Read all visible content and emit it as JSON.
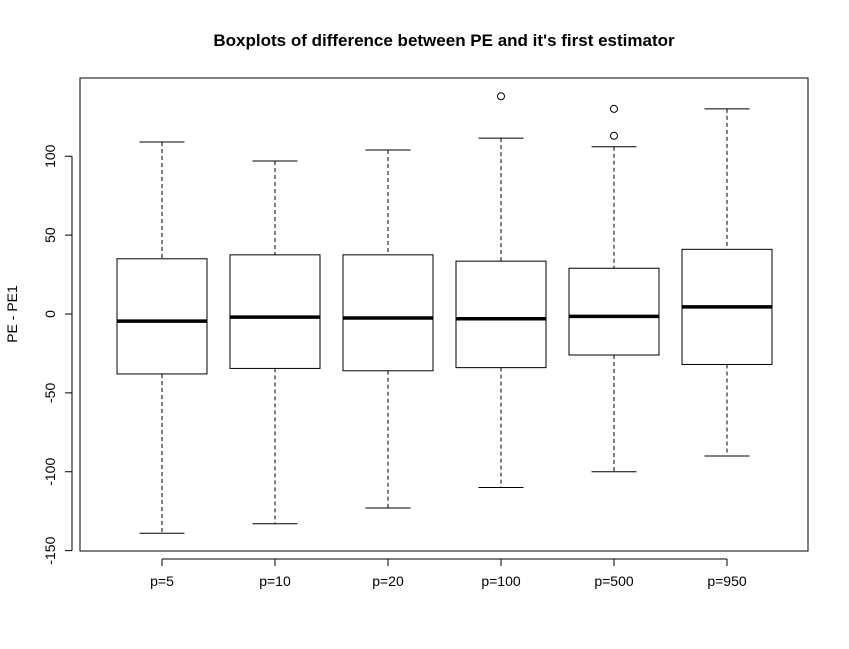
{
  "chart_data": {
    "type": "boxplot",
    "title": "Boxplots of difference between PE and it's first estimator",
    "xlabel": "",
    "ylabel": "PE - PE1",
    "ylim": [
      -150,
      140
    ],
    "yticks": [
      -150,
      -100,
      -50,
      0,
      50,
      100
    ],
    "grid": false,
    "categories": [
      "p=5",
      "p=10",
      "p=20",
      "p=100",
      "p=500",
      "p=950"
    ],
    "boxes": [
      {
        "category": "p=5",
        "whisker_low": -139,
        "q1": -38,
        "median": -4.5,
        "q3": 35,
        "whisker_high": 109,
        "outliers": []
      },
      {
        "category": "p=10",
        "whisker_low": -133,
        "q1": -34.5,
        "median": -2,
        "q3": 37.5,
        "whisker_high": 97,
        "outliers": []
      },
      {
        "category": "p=20",
        "whisker_low": -123,
        "q1": -36,
        "median": -2.5,
        "q3": 37.5,
        "whisker_high": 104,
        "outliers": []
      },
      {
        "category": "p=100",
        "whisker_low": -110,
        "q1": -34,
        "median": -3,
        "q3": 33.5,
        "whisker_high": 111.5,
        "outliers": [
          138
        ]
      },
      {
        "category": "p=500",
        "whisker_low": -100,
        "q1": -26,
        "median": -1.5,
        "q3": 29,
        "whisker_high": 106,
        "outliers": [
          130,
          113
        ]
      },
      {
        "category": "p=950",
        "whisker_low": -90,
        "q1": -32,
        "median": 4.5,
        "q3": 41,
        "whisker_high": 130,
        "outliers": []
      }
    ]
  }
}
